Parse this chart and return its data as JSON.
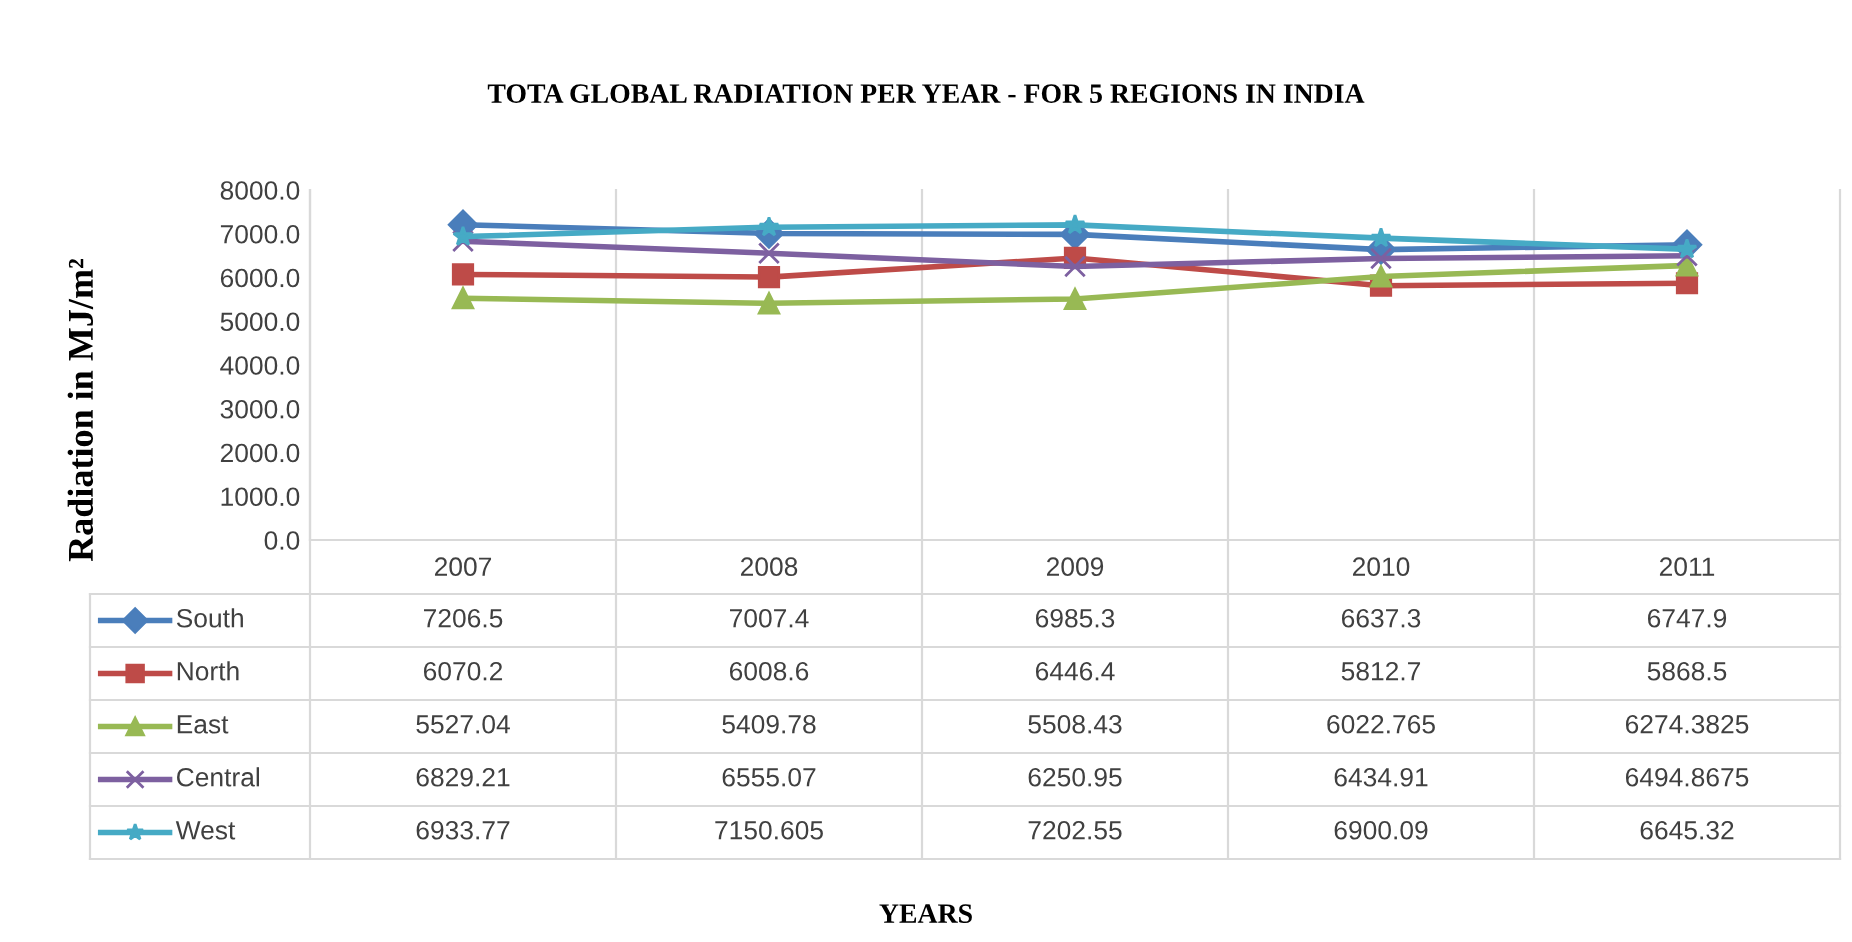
{
  "chart_data": {
    "type": "line",
    "title": "TOTA GLOBAL RADIATION PER YEAR - FOR 5 REGIONS IN INDIA",
    "annotations": [
      "YEARS"
    ],
    "ylabel": "Radiation in MJ/m²",
    "categories": [
      "2007",
      "2008",
      "2009",
      "2010",
      "2011"
    ],
    "ylim": [
      0,
      8000
    ],
    "yticks": [
      {
        "value": 0,
        "label": "0.0"
      },
      {
        "value": 1000,
        "label": "1000.0"
      },
      {
        "value": 2000,
        "label": "2000.0"
      },
      {
        "value": 3000,
        "label": "3000.0"
      },
      {
        "value": 4000,
        "label": "4000.0"
      },
      {
        "value": 5000,
        "label": "5000.0"
      },
      {
        "value": 6000,
        "label": "6000.0"
      },
      {
        "value": 7000,
        "label": "7000.0"
      },
      {
        "value": 8000,
        "label": "8000.0"
      }
    ],
    "grid": "x",
    "legend": "bottom",
    "line_style": "solid",
    "series": [
      {
        "name": "South",
        "color": "#4a7ebb",
        "marker": "diamond",
        "values": [
          7206.5,
          7007.4,
          6985.3,
          6637.3,
          6747.9
        ],
        "value_labels": [
          "7206.5",
          "7007.4",
          "6985.3",
          "6637.3",
          "6747.9"
        ]
      },
      {
        "name": "North",
        "color": "#be4b48",
        "marker": "square",
        "values": [
          6070.2,
          6008.6,
          6446.4,
          5812.7,
          5868.5
        ],
        "value_labels": [
          "6070.2",
          "6008.6",
          "6446.4",
          "5812.7",
          "5868.5"
        ]
      },
      {
        "name": "East",
        "color": "#98b954",
        "marker": "triangle",
        "values": [
          5527.04,
          5409.78,
          5508.43,
          6022.765,
          6274.3825
        ],
        "value_labels": [
          "5527.04",
          "5409.78",
          "5508.43",
          "6022.765",
          "6274.3825"
        ]
      },
      {
        "name": "Central",
        "color": "#7d60a0",
        "marker": "cross",
        "values": [
          6829.21,
          6555.07,
          6250.95,
          6434.91,
          6494.8675
        ],
        "value_labels": [
          "6829.21",
          "6555.07",
          "6250.95",
          "6434.91",
          "6494.8675"
        ]
      },
      {
        "name": "West",
        "color": "#46aac5",
        "marker": "star",
        "values": [
          6933.77,
          7150.605,
          7202.55,
          6900.09,
          6645.32
        ],
        "value_labels": [
          "6933.77",
          "7150.605",
          "7202.55",
          "6900.09",
          "6645.32"
        ]
      }
    ]
  }
}
